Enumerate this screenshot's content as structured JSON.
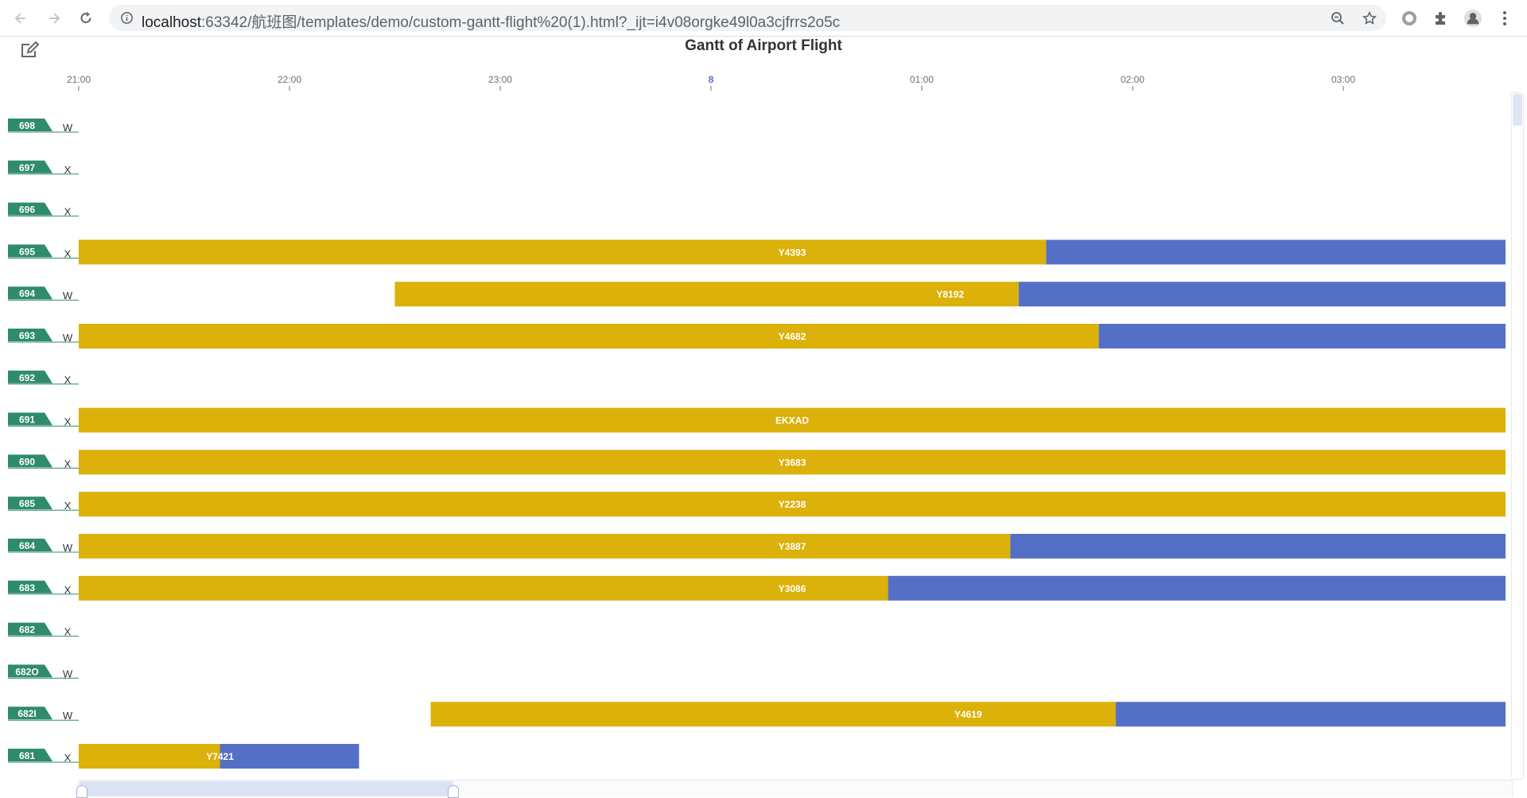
{
  "browser": {
    "url_host": "localhost",
    "url_rest": ":63342/航班图/templates/demo/custom-gantt-flight%20(1).html?_ijt=i4v08orgke49l0a3cjfrrs2o5c",
    "icons": [
      "back-icon",
      "forward-icon",
      "reload-icon",
      "info-icon",
      "zoom-icon",
      "star-icon",
      "extension-record-icon",
      "puzzle-icon",
      "profile-icon",
      "more-icon"
    ]
  },
  "colors": {
    "accent_green": "#2f8c6a",
    "bar_gold": "#dbb10a",
    "bar_blue": "#5470c6",
    "text_dark": "#333333"
  },
  "chart_data": {
    "type": "gantt",
    "title": "Gantt of Airport Flight",
    "x_unit": "hours since 21:00",
    "xlim": [
      0,
      6.77
    ],
    "ticks": [
      {
        "label": "21:00",
        "value": 0
      },
      {
        "label": "22:00",
        "value": 1
      },
      {
        "label": "23:00",
        "value": 2
      },
      {
        "label": "8",
        "value": 3
      },
      {
        "label": "01:00",
        "value": 4
      },
      {
        "label": "02:00",
        "value": 5
      },
      {
        "label": "03:00",
        "value": 6
      }
    ],
    "rows": [
      {
        "id": "698",
        "type": "W",
        "bars": []
      },
      {
        "id": "697",
        "type": "X",
        "bars": []
      },
      {
        "id": "696",
        "type": "X",
        "bars": []
      },
      {
        "id": "695",
        "type": "X",
        "bars": [
          {
            "label": "Y4393",
            "start": 0,
            "split": 4.59,
            "end": 6.77
          }
        ]
      },
      {
        "id": "694",
        "type": "W",
        "bars": [
          {
            "label": "Y8192",
            "start": 1.5,
            "split": 4.46,
            "end": 6.77
          }
        ]
      },
      {
        "id": "693",
        "type": "W",
        "bars": [
          {
            "label": "Y4682",
            "start": 0,
            "split": 4.84,
            "end": 6.77
          }
        ]
      },
      {
        "id": "692",
        "type": "X",
        "bars": []
      },
      {
        "id": "691",
        "type": "X",
        "bars": [
          {
            "label": "EKXAD",
            "start": 0,
            "split": 6.77,
            "end": 6.77
          }
        ]
      },
      {
        "id": "690",
        "type": "X",
        "bars": [
          {
            "label": "Y3683",
            "start": 0,
            "split": 6.77,
            "end": 6.77
          }
        ]
      },
      {
        "id": "685",
        "type": "X",
        "bars": [
          {
            "label": "Y2238",
            "start": 0,
            "split": 6.77,
            "end": 6.77
          }
        ]
      },
      {
        "id": "684",
        "type": "W",
        "bars": [
          {
            "label": "Y3887",
            "start": 0,
            "split": 4.42,
            "end": 6.77
          }
        ]
      },
      {
        "id": "683",
        "type": "X",
        "bars": [
          {
            "label": "Y3086",
            "start": 0,
            "split": 3.84,
            "end": 6.77
          }
        ]
      },
      {
        "id": "682",
        "type": "X",
        "bars": []
      },
      {
        "id": "682O",
        "type": "W",
        "bars": []
      },
      {
        "id": "682I",
        "type": "W",
        "bars": [
          {
            "label": "Y4619",
            "start": 1.67,
            "split": 4.92,
            "end": 6.77
          }
        ]
      },
      {
        "id": "681",
        "type": "X",
        "bars": [
          {
            "label": "Y7421",
            "start": 0,
            "split": 0.67,
            "end": 1.33
          }
        ]
      }
    ]
  }
}
